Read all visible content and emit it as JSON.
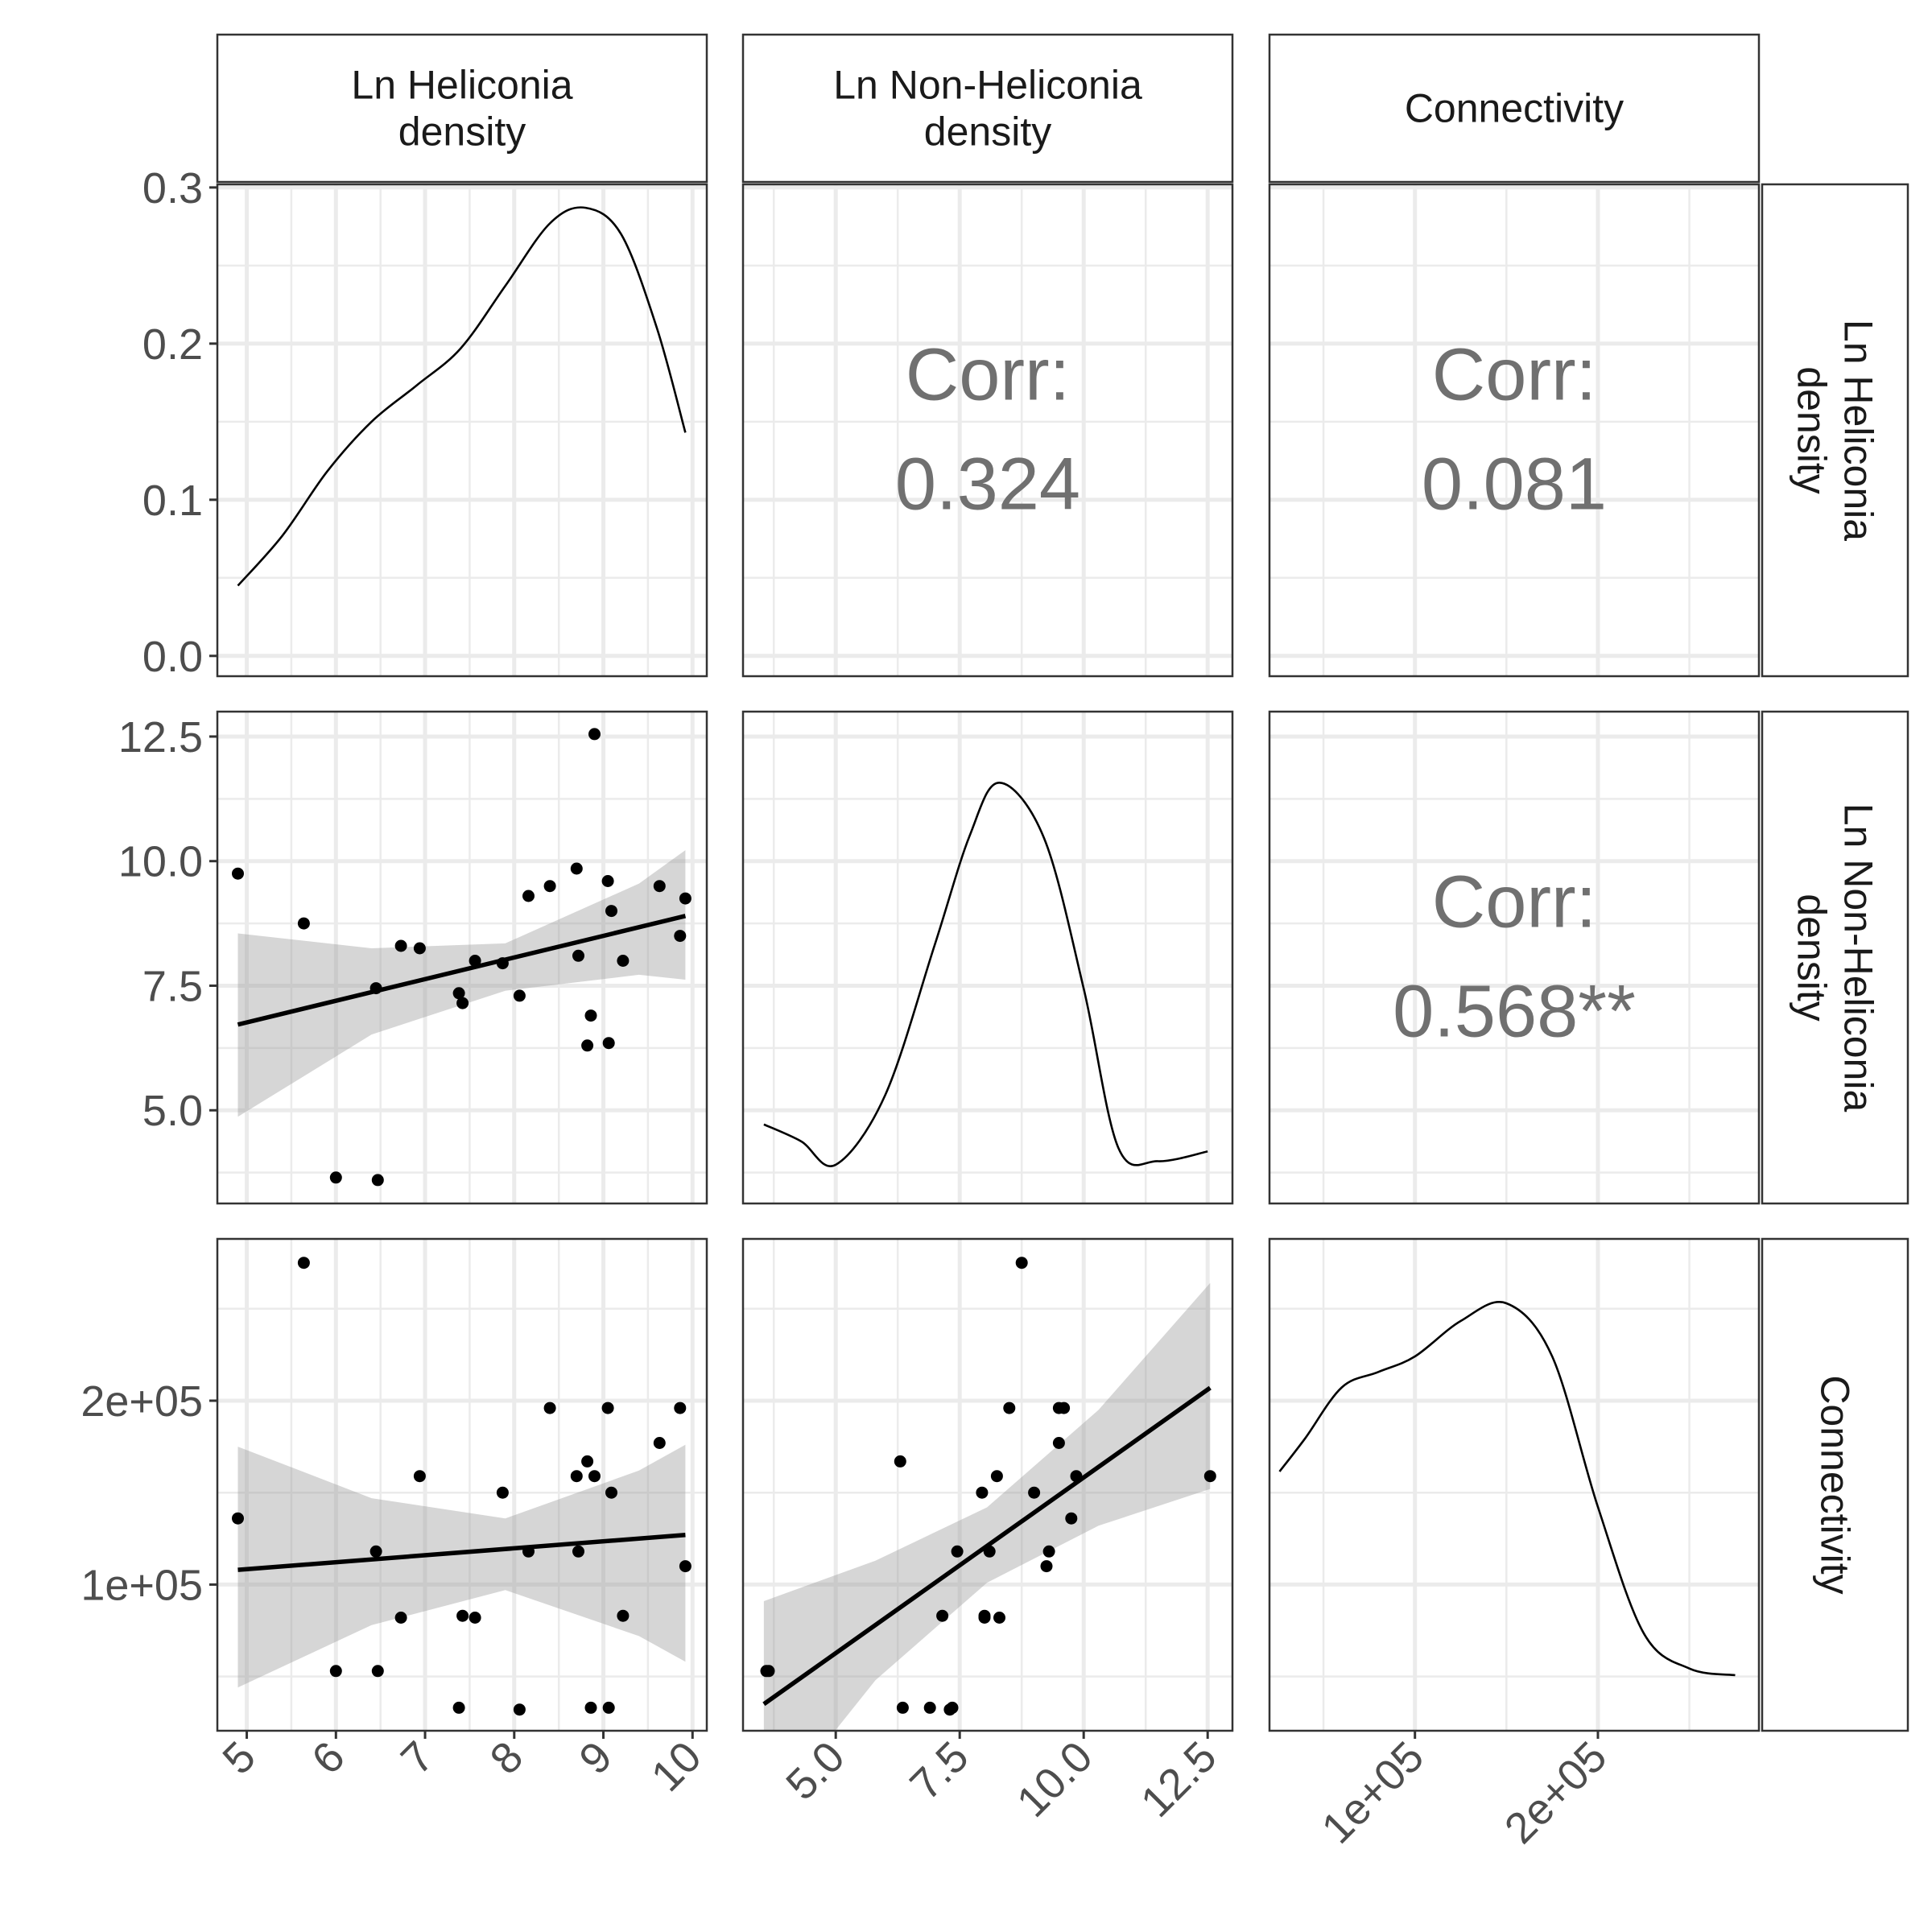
{
  "chart_data": {
    "type": "scatter",
    "variables": [
      {
        "key": "heli",
        "label": "Ln Heliconia density",
        "label_lines": [
          "Ln Heliconia",
          "density"
        ],
        "range": [
          4.67,
          10.16
        ]
      },
      {
        "key": "nonheli",
        "label": "Ln Non-Heliconia density",
        "label_lines": [
          "Ln Non-Heliconia",
          "density"
        ],
        "range": [
          3.13,
          13.0
        ]
      },
      {
        "key": "conn",
        "label": "Connectivity",
        "label_lines": [
          "Connectivity"
        ],
        "range": [
          20500,
          288000
        ]
      }
    ],
    "x_ticks": {
      "heli": {
        "values": [
          5,
          6,
          7,
          8,
          9,
          10
        ],
        "labels": [
          "5",
          "6",
          "7",
          "8",
          "9",
          "10"
        ]
      },
      "nonheli": {
        "values": [
          5,
          7.5,
          10,
          12.5
        ],
        "labels": [
          "5.0",
          "7.5",
          "10.0",
          "12.5"
        ]
      },
      "conn": {
        "values": [
          100000,
          200000
        ],
        "labels": [
          "1e+05",
          "2e+05"
        ]
      }
    },
    "y_ticks": {
      "density": {
        "values": [
          0,
          0.1,
          0.2,
          0.3
        ],
        "labels": [
          "0.0",
          "0.1",
          "0.2",
          "0.3"
        ],
        "range": [
          -0.013,
          0.302
        ]
      },
      "nonheli": {
        "values": [
          5,
          7.5,
          10,
          12.5
        ],
        "labels": [
          "5.0",
          "7.5",
          "10.0",
          "12.5"
        ]
      },
      "conn": {
        "values": [
          100000,
          200000
        ],
        "labels": [
          "1e+05",
          "2e+05"
        ]
      }
    },
    "correlations": [
      {
        "row": 0,
        "col": 1,
        "label": "Corr:",
        "value": "0.324"
      },
      {
        "row": 0,
        "col": 2,
        "label": "Corr:",
        "value": "0.081"
      },
      {
        "row": 1,
        "col": 2,
        "label": "Corr:",
        "value": "0.568**"
      }
    ],
    "densities": {
      "heli": {
        "x": [
          4.9,
          5.4,
          5.9,
          6.4,
          6.9,
          7.4,
          7.9,
          8.4,
          8.8,
          9.2,
          9.6,
          9.92
        ],
        "y": [
          0.045,
          0.077,
          0.118,
          0.15,
          0.173,
          0.197,
          0.237,
          0.277,
          0.287,
          0.27,
          0.21,
          0.143
        ]
      },
      "nonheli": {
        "x": [
          3.55,
          4.3,
          5.0,
          6.0,
          7.0,
          7.7,
          8.3,
          9.2,
          10.0,
          10.7,
          11.5,
          12.5
        ],
        "y": [
          0.123,
          0.085,
          0.032,
          0.19,
          0.53,
          0.775,
          0.895,
          0.77,
          0.43,
          0.07,
          0.04,
          0.062
        ],
        "scale": "relative"
      },
      "conn": {
        "x": [
          26000,
          40000,
          60000,
          80000,
          100000,
          125000,
          150000,
          175000,
          200000,
          225000,
          250000,
          275000
        ],
        "y": [
          0.53,
          0.605,
          0.72,
          0.755,
          0.79,
          0.87,
          0.91,
          0.79,
          0.45,
          0.165,
          0.085,
          0.07
        ],
        "scale": "relative"
      }
    },
    "points": [
      {
        "heli": 4.9,
        "nonheli": 9.75,
        "conn": 136000
      },
      {
        "heli": 5.64,
        "nonheli": 8.75,
        "conn": 275000
      },
      {
        "heli": 6.0,
        "nonheli": 3.65,
        "conn": 53000
      },
      {
        "heli": 6.45,
        "nonheli": 7.45,
        "conn": 118000
      },
      {
        "heli": 6.47,
        "nonheli": 3.6,
        "conn": 53000
      },
      {
        "heli": 6.73,
        "nonheli": 8.3,
        "conn": 82000
      },
      {
        "heli": 6.94,
        "nonheli": 8.25,
        "conn": 159000
      },
      {
        "heli": 7.38,
        "nonheli": 7.35,
        "conn": 33000
      },
      {
        "heli": 7.42,
        "nonheli": 7.15,
        "conn": 83000
      },
      {
        "heli": 7.56,
        "nonheli": 8.0,
        "conn": 82000
      },
      {
        "heli": 7.87,
        "nonheli": 7.95,
        "conn": 150000
      },
      {
        "heli": 8.06,
        "nonheli": 7.3,
        "conn": 32000
      },
      {
        "heli": 8.16,
        "nonheli": 9.3,
        "conn": 118000
      },
      {
        "heli": 8.4,
        "nonheli": 9.5,
        "conn": 196000
      },
      {
        "heli": 8.7,
        "nonheli": 9.85,
        "conn": 159000
      },
      {
        "heli": 8.72,
        "nonheli": 8.1,
        "conn": 118000
      },
      {
        "heli": 8.82,
        "nonheli": 6.3,
        "conn": 167000
      },
      {
        "heli": 8.86,
        "nonheli": 6.9,
        "conn": 33000
      },
      {
        "heli": 8.9,
        "nonheli": 12.55,
        "conn": 159000
      },
      {
        "heli": 9.05,
        "nonheli": 9.6,
        "conn": 196000
      },
      {
        "heli": 9.06,
        "nonheli": 6.35,
        "conn": 33000
      },
      {
        "heli": 9.09,
        "nonheli": 9.0,
        "conn": 150000
      },
      {
        "heli": 9.22,
        "nonheli": 8.0,
        "conn": 83000
      },
      {
        "heli": 9.63,
        "nonheli": 9.5,
        "conn": 177000
      },
      {
        "heli": 9.86,
        "nonheli": 8.5,
        "conn": 196000
      },
      {
        "heli": 9.92,
        "nonheli": 9.25,
        "conn": 110000
      }
    ],
    "fits": [
      {
        "x": "heli",
        "y": "nonheli",
        "line": [
          [
            4.9,
            6.72
          ],
          [
            9.92,
            8.9
          ]
        ],
        "band": {
          "x": [
            4.9,
            6.4,
            7.9,
            9.4,
            9.92
          ],
          "lo": [
            4.87,
            6.52,
            7.4,
            7.72,
            7.62
          ],
          "hi": [
            8.55,
            8.25,
            8.35,
            9.55,
            10.22
          ]
        }
      },
      {
        "x": "heli",
        "y": "conn",
        "line": [
          [
            4.9,
            108000
          ],
          [
            9.92,
            127000
          ]
        ],
        "band": {
          "x": [
            4.9,
            6.4,
            7.9,
            9.4,
            9.92
          ],
          "lo": [
            44000,
            78000,
            97000,
            72000,
            58000
          ],
          "hi": [
            175000,
            147000,
            136000,
            162000,
            176000
          ]
        }
      },
      {
        "x": "nonheli",
        "y": "conn",
        "line": [
          [
            3.55,
            35000
          ],
          [
            12.55,
            207000
          ]
        ],
        "band": {
          "x": [
            3.55,
            5.8,
            8.05,
            10.3,
            12.55
          ],
          "lo": [
            -28000,
            48000,
            101000,
            132000,
            152000
          ],
          "hi": [
            91000,
            113000,
            142000,
            195000,
            264000
          ]
        }
      }
    ],
    "title": "",
    "grid": true
  }
}
